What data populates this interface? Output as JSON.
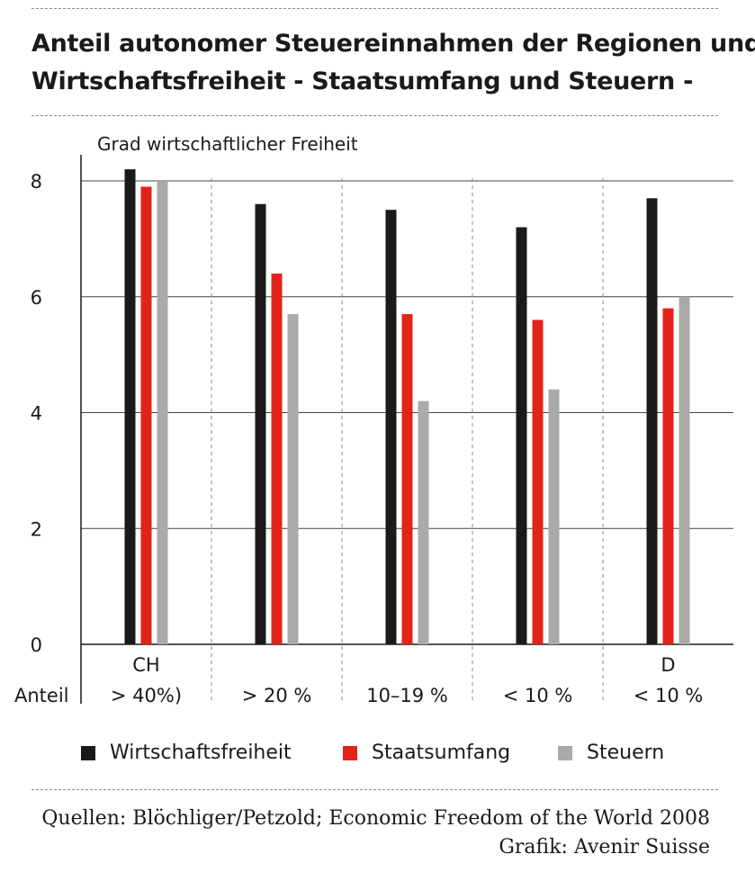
{
  "header": {
    "title_line1": "Anteil autonomer Steuereinnahmen der Regionen und",
    "title_line2": "Wirtschaftsfreiheit - Staatsumfang und Steuern -"
  },
  "chart_data": {
    "type": "bar",
    "ylabel": "Grad wirtschaftlicher Freiheit",
    "ylim": [
      0,
      8
    ],
    "yticks": [
      "0",
      "2",
      "4",
      "6",
      "8"
    ],
    "xaxis_prefix": "Anteil",
    "categories": [
      {
        "top": "CH",
        "bottom": "> 40%)"
      },
      {
        "top": "",
        "bottom": "> 20 %"
      },
      {
        "top": "",
        "bottom": "10–19 %"
      },
      {
        "top": "",
        "bottom": "< 10 %"
      },
      {
        "top": "D",
        "bottom": "< 10 %"
      }
    ],
    "series": [
      {
        "name": "Wirtschaftsfreiheit",
        "color": "#1a1a1a",
        "values": [
          8.2,
          7.6,
          7.5,
          7.2,
          7.7
        ]
      },
      {
        "name": "Staatsumfang",
        "color": "#e2231a",
        "values": [
          7.9,
          6.4,
          5.7,
          5.6,
          5.8
        ]
      },
      {
        "name": "Steuern",
        "color": "#aaaaaa",
        "values": [
          8.0,
          5.7,
          4.2,
          4.4,
          6.0
        ]
      }
    ],
    "grid": true,
    "legend_position": "bottom"
  },
  "footer": {
    "source": "Quellen: Blöchliger/Petzold; Economic Freedom of the World 2008",
    "credit": "Grafik: Avenir Suisse"
  }
}
